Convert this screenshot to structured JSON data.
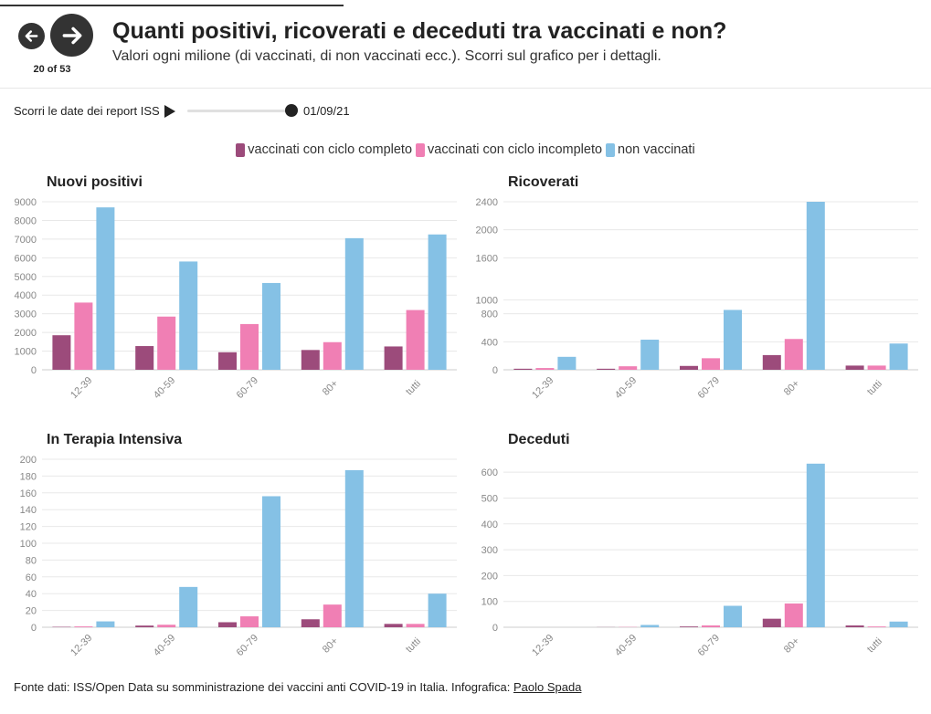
{
  "header": {
    "counter": "20 of 53",
    "title": "Quanti positivi, ricoverati e deceduti tra vaccinati e non?",
    "subtitle": "Valori ogni milione (di vaccinati, di non vaccinati ecc.). Scorri sul grafico per i dettagli."
  },
  "controls": {
    "slider_label": "Scorri le date dei report ISS",
    "slider_value": "01/09/21"
  },
  "legend": [
    {
      "label": "vaccinati con ciclo completo",
      "color": "#9c4b7b"
    },
    {
      "label": "vaccinati con ciclo incompleto",
      "color": "#f07fb4"
    },
    {
      "label": "non vaccinati",
      "color": "#85c1e5"
    }
  ],
  "footer": {
    "text": "Fonte dati: ISS/Open Data su somministrazione dei vaccini anti COVID-19 in Italia. Infografica: ",
    "author": "Paolo Spada"
  },
  "chart_data": [
    {
      "type": "bar",
      "title": "Nuovi positivi",
      "categories": [
        "12-39",
        "40-59",
        "60-79",
        "80+",
        "tutti"
      ],
      "yticks": [
        0,
        1000,
        2000,
        3000,
        4000,
        5000,
        6000,
        7000,
        8000,
        9000
      ],
      "ylim": [
        0,
        9000
      ],
      "series": [
        {
          "name": "vaccinati con ciclo completo",
          "values": [
            1850,
            1270,
            940,
            1060,
            1250
          ]
        },
        {
          "name": "vaccinati con ciclo incompleto",
          "values": [
            3600,
            2850,
            2450,
            1480,
            3200
          ]
        },
        {
          "name": "non vaccinati",
          "values": [
            8700,
            5800,
            4650,
            7050,
            7250
          ]
        }
      ]
    },
    {
      "type": "bar",
      "title": "Ricoverati",
      "categories": [
        "12-39",
        "40-59",
        "60-79",
        "80+",
        "tutti"
      ],
      "yticks": [
        0,
        400,
        800,
        1000,
        1600,
        2000,
        2400
      ],
      "ylim": [
        0,
        2400
      ],
      "series": [
        {
          "name": "vaccinati con ciclo completo",
          "values": [
            15,
            15,
            55,
            210,
            60
          ]
        },
        {
          "name": "vaccinati con ciclo incompleto",
          "values": [
            25,
            50,
            165,
            440,
            60
          ]
        },
        {
          "name": "non vaccinati",
          "values": [
            185,
            430,
            855,
            2400,
            375
          ]
        }
      ]
    },
    {
      "type": "bar",
      "title": "In Terapia Intensiva",
      "categories": [
        "12-39",
        "40-59",
        "60-79",
        "80+",
        "tutti"
      ],
      "yticks": [
        0,
        20,
        40,
        60,
        80,
        100,
        120,
        140,
        160,
        180,
        200
      ],
      "ylim": [
        0,
        200
      ],
      "series": [
        {
          "name": "vaccinati con ciclo completo",
          "values": [
            0.5,
            2,
            6,
            9.5,
            4
          ]
        },
        {
          "name": "vaccinati con ciclo incompleto",
          "values": [
            1,
            3,
            13,
            27,
            4
          ]
        },
        {
          "name": "non vaccinati",
          "values": [
            7,
            48,
            156,
            187,
            40
          ]
        }
      ]
    },
    {
      "type": "bar",
      "title": "Deceduti",
      "categories": [
        "12-39",
        "40-59",
        "60-79",
        "80+",
        "tutti"
      ],
      "yticks": [
        0,
        100,
        200,
        300,
        400,
        500,
        600
      ],
      "ylim": [
        0,
        650
      ],
      "series": [
        {
          "name": "vaccinati con ciclo completo",
          "values": [
            0,
            0.5,
            3,
            33,
            7
          ]
        },
        {
          "name": "vaccinati con ciclo incompleto",
          "values": [
            0,
            1,
            7,
            92,
            3
          ]
        },
        {
          "name": "non vaccinati",
          "values": [
            0,
            9,
            83,
            633,
            22
          ]
        }
      ]
    }
  ]
}
